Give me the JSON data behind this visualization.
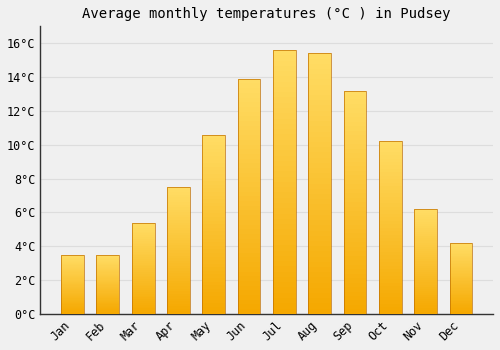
{
  "title": "Average monthly temperatures (°C ) in Pudsey",
  "months": [
    "Jan",
    "Feb",
    "Mar",
    "Apr",
    "May",
    "Jun",
    "Jul",
    "Aug",
    "Sep",
    "Oct",
    "Nov",
    "Dec"
  ],
  "values": [
    3.5,
    3.5,
    5.4,
    7.5,
    10.6,
    13.9,
    15.6,
    15.4,
    13.2,
    10.2,
    6.2,
    4.2
  ],
  "bar_color_bottom": "#F5A800",
  "bar_color_top": "#FFD966",
  "background_color": "#F0F0F0",
  "grid_color": "#DDDDDD",
  "ylim": [
    0,
    17.0
  ],
  "yticks": [
    0,
    2,
    4,
    6,
    8,
    10,
    12,
    14,
    16
  ],
  "title_fontsize": 10,
  "tick_fontsize": 8.5,
  "font_family": "monospace"
}
